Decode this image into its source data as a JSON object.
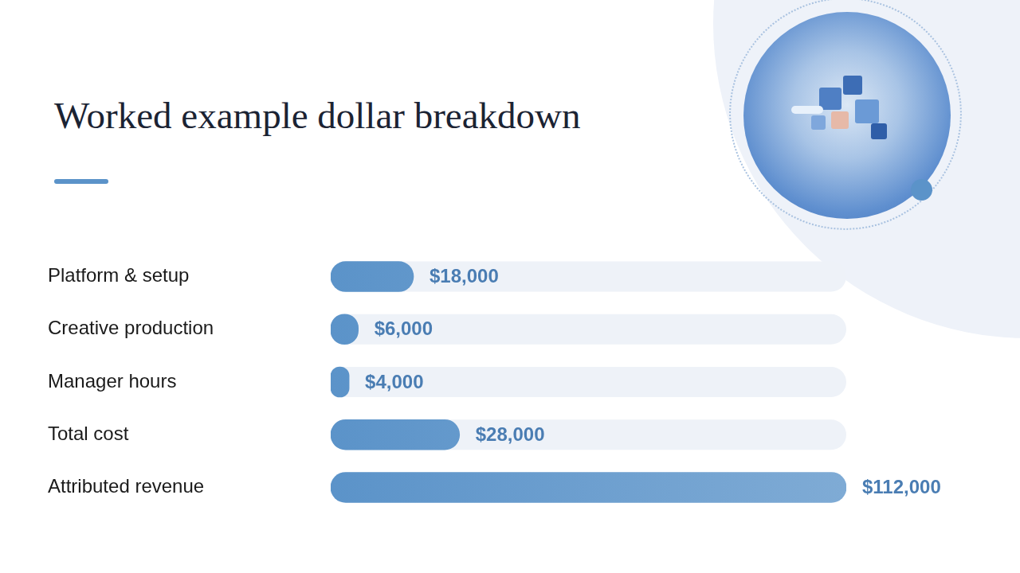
{
  "chart_data": {
    "type": "bar",
    "orientation": "horizontal",
    "title": "Worked example dollar breakdown",
    "categories": [
      "Platform & setup",
      "Creative production",
      "Manager hours",
      "Total cost",
      "Attributed revenue"
    ],
    "values": [
      18000,
      6000,
      4000,
      28000,
      112000
    ],
    "value_labels": [
      "$18,000",
      "$6,000",
      "$4,000",
      "$28,000",
      "$112,000"
    ],
    "color": "#5b93c9",
    "xlim": [
      0,
      112000
    ],
    "grid": false,
    "data_labels": true,
    "tick_labels": "y"
  }
}
